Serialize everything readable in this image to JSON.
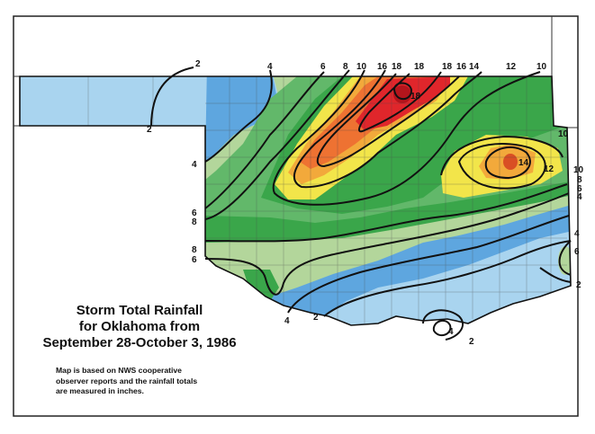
{
  "title_lines": [
    "Storm Total Rainfall",
    "for Oklahoma from",
    "September 28-October 3, 1986"
  ],
  "note_lines": [
    "Map is based on NWS cooperative",
    "observer reports and the rainfall totals",
    "are measured in inches."
  ],
  "contour_values": {
    "c2": "2",
    "c4": "4",
    "c6": "6",
    "c8": "8",
    "c10": "10",
    "c12": "12",
    "c14": "14",
    "c16": "16",
    "c18": "18"
  },
  "legend_colors": {
    "2": "#a9d4ef",
    "4": "#5ea6df",
    "6": "#b3d69b",
    "8": "#62b86a",
    "10": "#3aa64a",
    "12": "#f2e54a",
    "14": "#f2a93b",
    "16": "#ee7232",
    "18": "#e0262b"
  }
}
